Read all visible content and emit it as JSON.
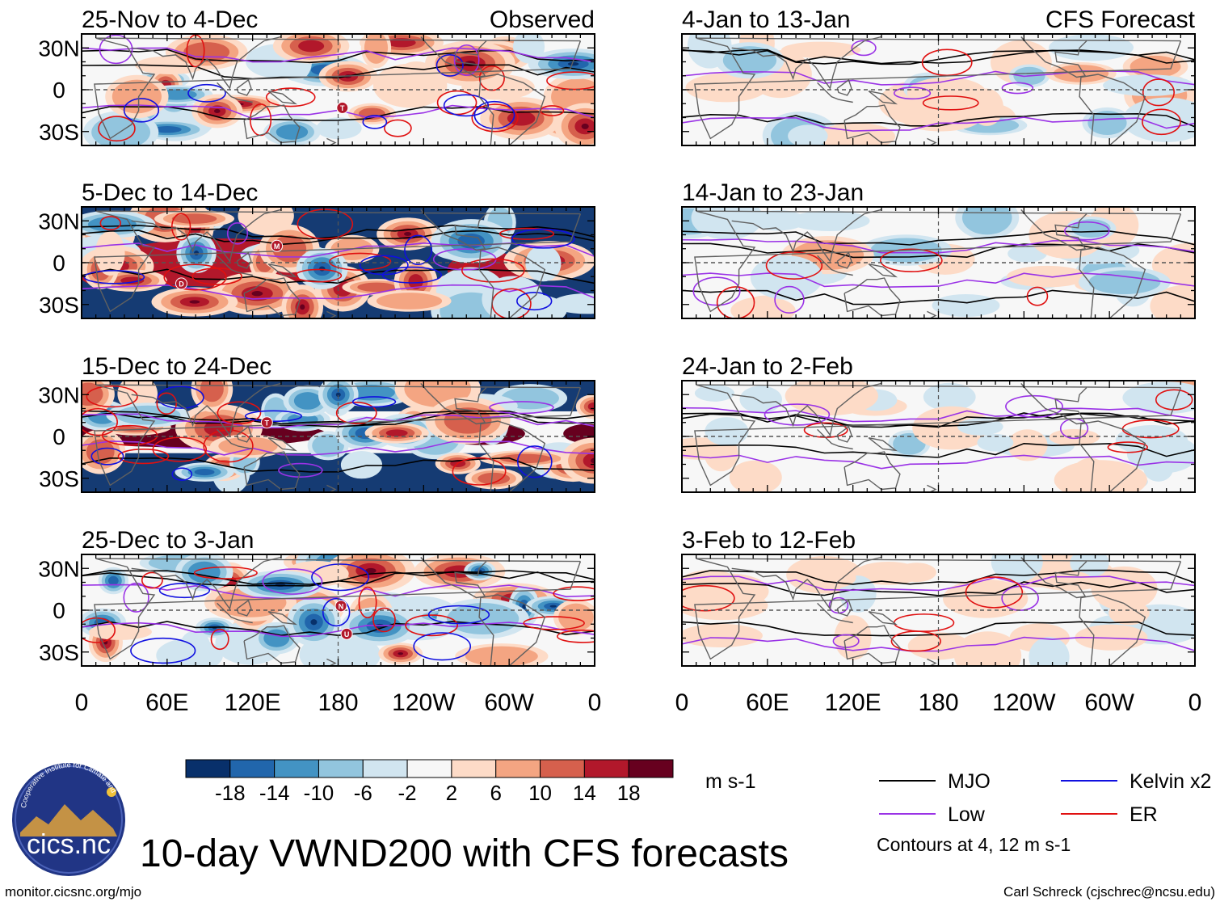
{
  "page": {
    "title": "10-day VWND200 with CFS forecasts",
    "url": "monitor.cicsnc.org/mjo",
    "author": "Carl Schreck (cjschrec@ncsu.edu)",
    "logo_text": "cics.nc",
    "logo_ring_text": "Cooperative Institute for Climate and Satellites"
  },
  "chart_data": [
    {
      "type": "heatmap",
      "column": "observed",
      "header_right": "Observed",
      "panels": [
        {
          "title": "25-Nov to 4-Dec",
          "storms": [
            {
              "letter": "T",
              "lon": 183,
              "lat": -13
            }
          ]
        },
        {
          "title": "5-Dec to 14-Dec",
          "storms": [
            {
              "letter": "M",
              "lon": 137,
              "lat": 12
            },
            {
              "letter": "D",
              "lon": 70,
              "lat": -15
            }
          ]
        },
        {
          "title": "15-Dec to 24-Dec",
          "storms": [
            {
              "letter": "T",
              "lon": 130,
              "lat": 10
            }
          ]
        },
        {
          "title": "25-Dec to 3-Jan",
          "storms": [
            {
              "letter": "N",
              "lon": 182,
              "lat": 3
            },
            {
              "letter": "U",
              "lon": 186,
              "lat": -17
            }
          ]
        }
      ]
    },
    {
      "type": "heatmap",
      "column": "forecast",
      "header_right": "CFS Forecast",
      "panels": [
        {
          "title": "4-Jan to 13-Jan",
          "storms": []
        },
        {
          "title": "14-Jan to 23-Jan",
          "storms": []
        },
        {
          "title": "24-Jan to 2-Feb",
          "storms": []
        },
        {
          "title": "3-Feb to 12-Feb",
          "storms": []
        }
      ]
    }
  ],
  "axes": {
    "x_ticks": [
      "0",
      "60E",
      "120E",
      "180",
      "120W",
      "60W",
      "0"
    ],
    "x_range_deg": [
      0,
      360
    ],
    "y_ticks": [
      "30N",
      "0",
      "30S"
    ],
    "y_range_deg": [
      -40,
      40
    ],
    "equator_line": "dashed",
    "dateline": "dashed"
  },
  "colorbar": {
    "labels": [
      "-18",
      "-14",
      "-10",
      "-6",
      "-2",
      "2",
      "6",
      "10",
      "14",
      "18"
    ],
    "colors": [
      "#08306b",
      "#2166ac",
      "#4393c3",
      "#92c5de",
      "#d1e5f0",
      "#f7f7f7",
      "#fddbc7",
      "#f4a582",
      "#d6604d",
      "#b2182b",
      "#67001f"
    ],
    "units": "m s-1"
  },
  "legend": {
    "items": [
      {
        "label": "MJO",
        "color": "#000000"
      },
      {
        "label": "Kelvin x2",
        "color": "#1010e0"
      },
      {
        "label": "Low",
        "color": "#9a32e6"
      },
      {
        "label": "ER",
        "color": "#e01010"
      }
    ],
    "note": "Contours at 4, 12 m s-1"
  }
}
